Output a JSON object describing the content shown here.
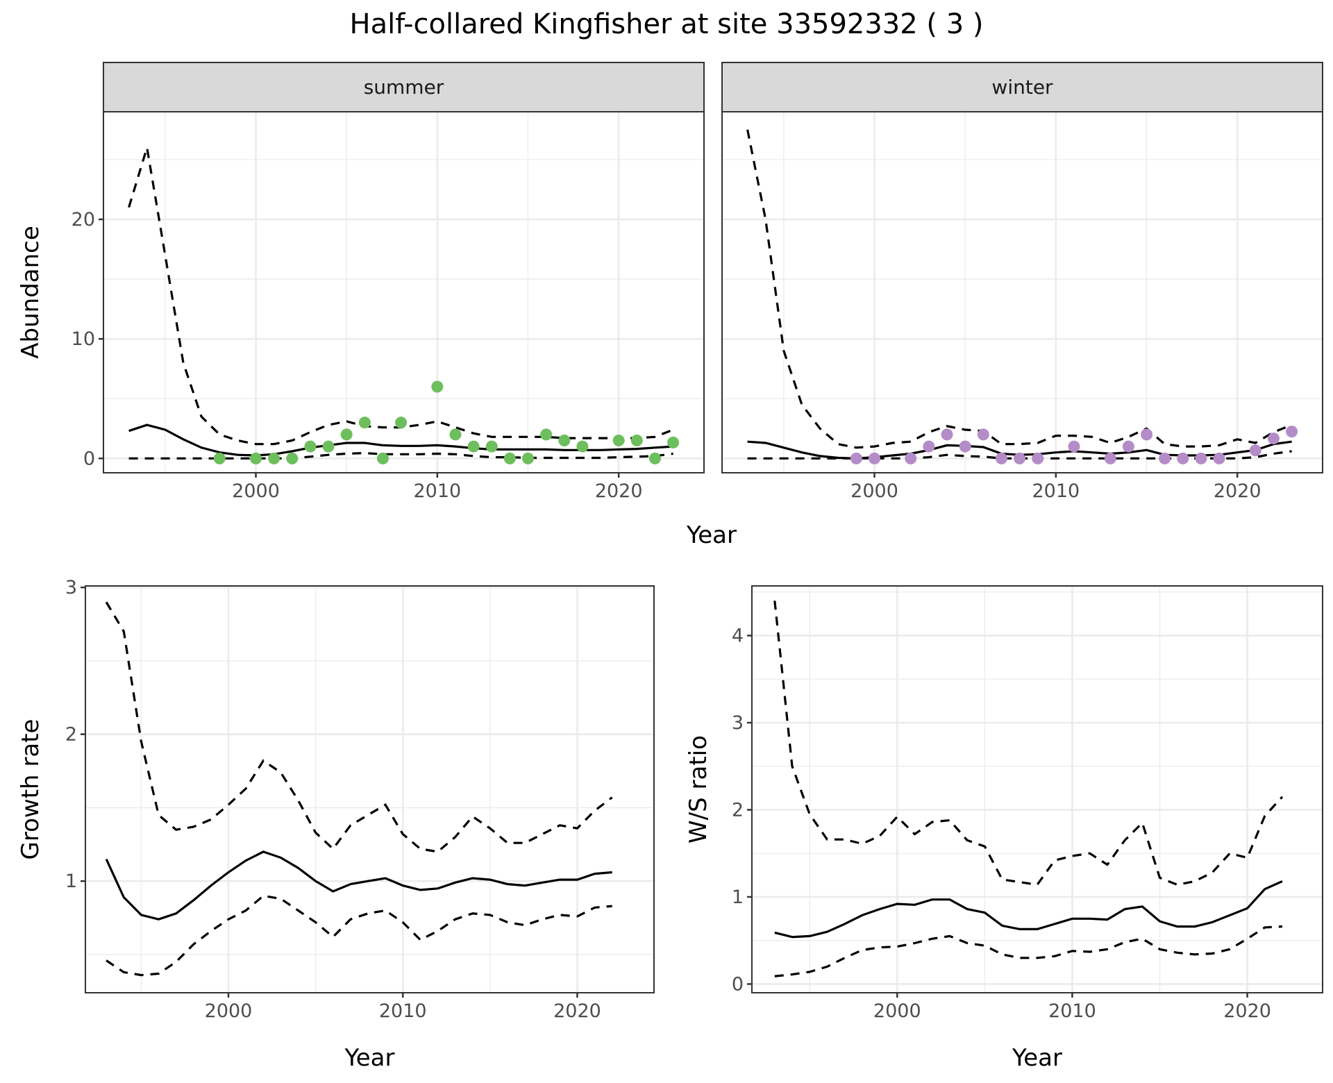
{
  "title": "Half-collared Kingfisher at site 33592332 ( 3 )",
  "chart_data": [
    {
      "type": "line",
      "panel": "summer",
      "xlabel": "Year",
      "ylabel": "Abundance",
      "xlim": [
        1991.6,
        2024.7
      ],
      "ylim": [
        -1.2,
        29
      ],
      "xticks": [
        2000,
        2010,
        2020
      ],
      "yticks": [
        0,
        10,
        20
      ],
      "grid": true,
      "point_color": "#6DBE5C",
      "x": [
        1993,
        1994,
        1995,
        1996,
        1997,
        1998,
        1999,
        2000,
        2001,
        2002,
        2003,
        2004,
        2005,
        2006,
        2007,
        2008,
        2009,
        2010,
        2011,
        2012,
        2013,
        2014,
        2015,
        2016,
        2017,
        2018,
        2019,
        2020,
        2021,
        2022,
        2023
      ],
      "mean": [
        2.3,
        2.8,
        2.4,
        1.6,
        0.9,
        0.5,
        0.3,
        0.25,
        0.35,
        0.6,
        0.9,
        1.1,
        1.3,
        1.3,
        1.1,
        1.05,
        1.05,
        1.1,
        1.0,
        0.85,
        0.75,
        0.75,
        0.75,
        0.75,
        0.7,
        0.7,
        0.7,
        0.75,
        0.8,
        0.9,
        1.0
      ],
      "upper": [
        21,
        26,
        17,
        8,
        3.5,
        2,
        1.5,
        1.2,
        1.2,
        1.5,
        2.2,
        2.8,
        3.1,
        2.7,
        2.6,
        2.6,
        2.8,
        3.1,
        2.6,
        2.1,
        1.8,
        1.8,
        1.8,
        1.8,
        1.7,
        1.7,
        1.7,
        1.7,
        1.7,
        1.8,
        2.4
      ],
      "lower": [
        0,
        0,
        0,
        0,
        0,
        0,
        0,
        0,
        0,
        0,
        0.15,
        0.3,
        0.4,
        0.45,
        0.35,
        0.35,
        0.35,
        0.4,
        0.35,
        0.2,
        0.1,
        0.1,
        0.05,
        0.05,
        0.05,
        0.05,
        0.05,
        0.1,
        0.15,
        0.2,
        0.4
      ],
      "points": {
        "x": [
          1998,
          2000,
          2001,
          2002,
          2003,
          2004,
          2005,
          2006,
          2007,
          2008,
          2010,
          2011,
          2012,
          2013,
          2014,
          2015,
          2016,
          2017,
          2018,
          2020,
          2021,
          2022,
          2023
        ],
        "y": [
          0,
          0,
          0,
          0,
          1,
          1,
          2,
          3,
          0,
          3,
          6,
          2,
          1,
          1,
          0,
          0,
          2,
          1.5,
          1,
          1.5,
          1.5,
          0,
          1.33
        ]
      }
    },
    {
      "type": "line",
      "panel": "winter",
      "xlabel": "Year",
      "ylabel": "Abundance",
      "xlim": [
        1991.6,
        2024.7
      ],
      "ylim": [
        -1.2,
        29
      ],
      "xticks": [
        2000,
        2010,
        2020
      ],
      "yticks": [
        0,
        10,
        20
      ],
      "grid": true,
      "point_color": "#B48CC8",
      "x": [
        1993,
        1994,
        1995,
        1996,
        1997,
        1998,
        1999,
        2000,
        2001,
        2002,
        2003,
        2004,
        2005,
        2006,
        2007,
        2008,
        2009,
        2010,
        2011,
        2012,
        2013,
        2014,
        2015,
        2016,
        2017,
        2018,
        2019,
        2020,
        2021,
        2022,
        2023
      ],
      "mean": [
        1.4,
        1.3,
        0.9,
        0.5,
        0.2,
        0.05,
        0,
        0.1,
        0.25,
        0.4,
        0.7,
        1.1,
        1.05,
        0.95,
        0.4,
        0.3,
        0.35,
        0.5,
        0.6,
        0.5,
        0.4,
        0.5,
        0.7,
        0.3,
        0.25,
        0.25,
        0.3,
        0.5,
        0.7,
        1.2,
        1.4
      ],
      "upper": [
        27.5,
        20,
        9,
        4.5,
        2.5,
        1.2,
        0.9,
        1.0,
        1.3,
        1.4,
        2.2,
        2.7,
        2.4,
        2.3,
        1.2,
        1.2,
        1.3,
        1.9,
        1.9,
        1.8,
        1.3,
        1.8,
        2.5,
        1.2,
        1.0,
        1.0,
        1.1,
        1.6,
        1.3,
        2.2,
        2.8
      ],
      "lower": [
        0,
        0,
        0,
        0,
        0,
        0,
        0,
        0,
        0,
        0,
        0.1,
        0.3,
        0.2,
        0.15,
        0,
        0,
        0,
        0,
        0,
        0,
        0,
        0,
        0,
        0,
        0,
        0,
        0,
        0,
        0.1,
        0.4,
        0.6
      ],
      "points": {
        "x": [
          1999,
          2000,
          2002,
          2003,
          2004,
          2005,
          2006,
          2007,
          2008,
          2009,
          2011,
          2013,
          2014,
          2015,
          2016,
          2017,
          2018,
          2019,
          2021,
          2022,
          2023
        ],
        "y": [
          0,
          0,
          0,
          1,
          2,
          1,
          2,
          0,
          0,
          0,
          1,
          0,
          1,
          2,
          0,
          0,
          0,
          0,
          0.67,
          1.67,
          2.25
        ]
      }
    },
    {
      "type": "line",
      "xlabel": "Year",
      "ylabel": "Growth rate",
      "xlim": [
        1991.8,
        2024.4
      ],
      "ylim": [
        0.24,
        3.01
      ],
      "xticks": [
        2000,
        2010,
        2020
      ],
      "yticks": [
        1,
        2,
        3
      ],
      "grid": true,
      "x": [
        1993,
        1994,
        1995,
        1996,
        1997,
        1998,
        1999,
        2000,
        2001,
        2002,
        2003,
        2004,
        2005,
        2006,
        2007,
        2008,
        2009,
        2010,
        2011,
        2012,
        2013,
        2014,
        2015,
        2016,
        2017,
        2018,
        2019,
        2020,
        2021,
        2022
      ],
      "mean": [
        1.15,
        0.89,
        0.77,
        0.74,
        0.78,
        0.87,
        0.97,
        1.06,
        1.14,
        1.2,
        1.16,
        1.09,
        1.0,
        0.93,
        0.98,
        1.0,
        1.02,
        0.97,
        0.94,
        0.95,
        0.99,
        1.02,
        1.01,
        0.98,
        0.97,
        0.99,
        1.01,
        1.01,
        1.05,
        1.06
      ],
      "upper": [
        2.9,
        2.7,
        1.95,
        1.45,
        1.35,
        1.37,
        1.42,
        1.52,
        1.63,
        1.82,
        1.74,
        1.55,
        1.33,
        1.22,
        1.38,
        1.45,
        1.52,
        1.32,
        1.22,
        1.2,
        1.3,
        1.44,
        1.36,
        1.26,
        1.26,
        1.32,
        1.38,
        1.36,
        1.48,
        1.57
      ],
      "lower": [
        0.46,
        0.38,
        0.36,
        0.37,
        0.45,
        0.57,
        0.66,
        0.74,
        0.8,
        0.9,
        0.88,
        0.8,
        0.72,
        0.62,
        0.74,
        0.78,
        0.8,
        0.72,
        0.6,
        0.66,
        0.74,
        0.78,
        0.77,
        0.72,
        0.7,
        0.74,
        0.77,
        0.76,
        0.82,
        0.83
      ]
    },
    {
      "type": "line",
      "xlabel": "Year",
      "ylabel": "W/S ratio",
      "xlim": [
        1991.7,
        2024.3
      ],
      "ylim": [
        -0.1,
        4.57
      ],
      "xticks": [
        2000,
        2010,
        2020
      ],
      "yticks": [
        0,
        1,
        2,
        3,
        4
      ],
      "grid": true,
      "x": [
        1993,
        1994,
        1995,
        1996,
        1997,
        1998,
        1999,
        2000,
        2001,
        2002,
        2003,
        2004,
        2005,
        2006,
        2007,
        2008,
        2009,
        2010,
        2011,
        2012,
        2013,
        2014,
        2015,
        2016,
        2017,
        2018,
        2019,
        2020,
        2021,
        2022
      ],
      "mean": [
        0.59,
        0.54,
        0.55,
        0.6,
        0.69,
        0.79,
        0.86,
        0.92,
        0.91,
        0.97,
        0.97,
        0.86,
        0.82,
        0.67,
        0.63,
        0.63,
        0.69,
        0.75,
        0.75,
        0.74,
        0.86,
        0.89,
        0.72,
        0.66,
        0.66,
        0.71,
        0.79,
        0.87,
        1.09,
        1.18
      ],
      "upper": [
        4.4,
        2.5,
        1.95,
        1.66,
        1.66,
        1.61,
        1.7,
        1.92,
        1.72,
        1.86,
        1.88,
        1.65,
        1.58,
        1.2,
        1.17,
        1.14,
        1.42,
        1.47,
        1.5,
        1.37,
        1.65,
        1.85,
        1.22,
        1.14,
        1.18,
        1.28,
        1.5,
        1.45,
        1.93,
        2.15
      ],
      "lower": [
        0.09,
        0.11,
        0.14,
        0.2,
        0.3,
        0.39,
        0.42,
        0.43,
        0.47,
        0.52,
        0.55,
        0.47,
        0.44,
        0.34,
        0.3,
        0.3,
        0.32,
        0.38,
        0.37,
        0.4,
        0.48,
        0.52,
        0.4,
        0.36,
        0.34,
        0.35,
        0.4,
        0.52,
        0.65,
        0.66
      ]
    }
  ]
}
